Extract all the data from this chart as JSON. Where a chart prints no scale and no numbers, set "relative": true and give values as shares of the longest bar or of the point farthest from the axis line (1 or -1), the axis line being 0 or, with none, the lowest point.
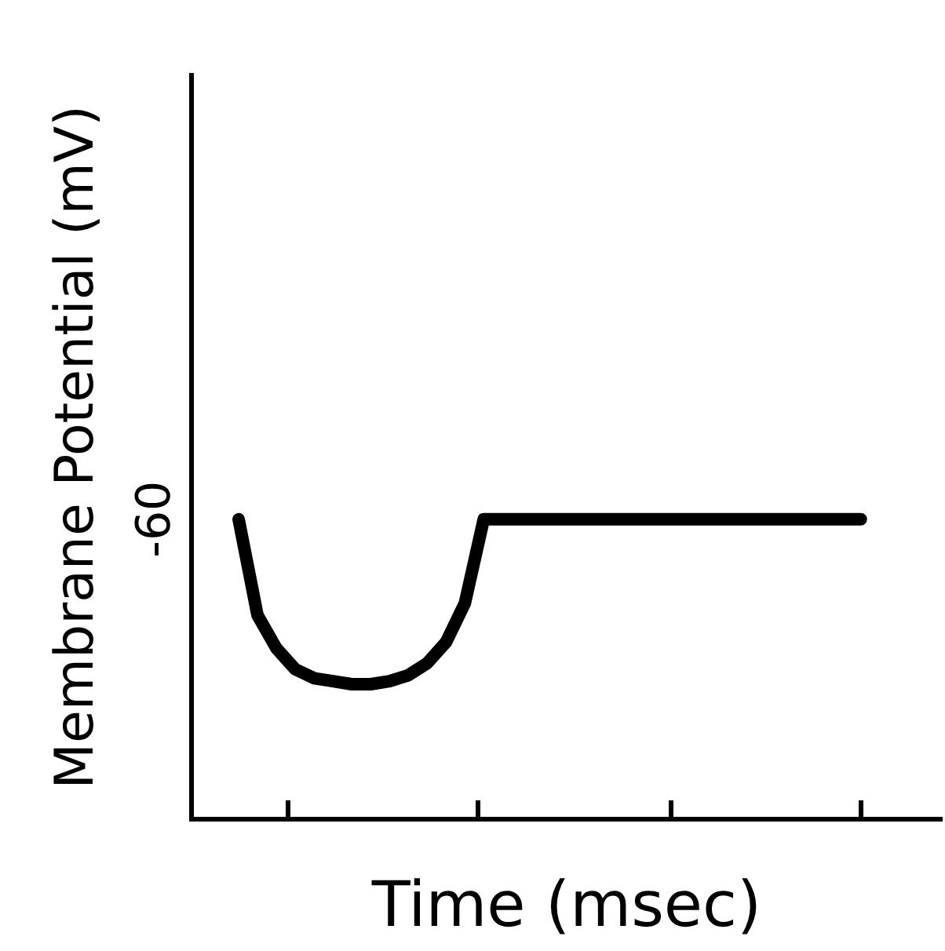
{
  "chart_data": {
    "type": "line",
    "relative": true,
    "xlabel": "Time (msec)",
    "ylabel": "Membrane Potential (mV)",
    "marker": "none",
    "line_style": "solid",
    "grid": false,
    "legend": false,
    "categories": [
      null,
      null,
      null,
      null,
      null,
      null,
      null,
      null,
      null,
      null,
      null,
      null,
      null,
      null,
      null,
      null,
      null,
      null,
      null,
      null,
      null,
      null,
      null,
      null,
      null,
      null,
      null,
      null,
      null,
      null,
      null,
      null,
      null,
      null
    ],
    "series": [
      {
        "color": "#000000",
        "values": [
          1,
          0.68,
          0.57,
          0.5,
          0.47,
          0.46,
          0.45,
          0.45,
          0.46,
          0.48,
          0.52,
          0.59,
          0.72,
          1,
          1,
          1,
          1,
          1,
          1,
          1,
          1,
          1,
          1,
          1,
          1,
          1,
          1,
          1,
          1,
          1,
          1,
          1,
          1,
          1
        ]
      }
    ],
    "annotations": [
      "-60"
    ]
  }
}
